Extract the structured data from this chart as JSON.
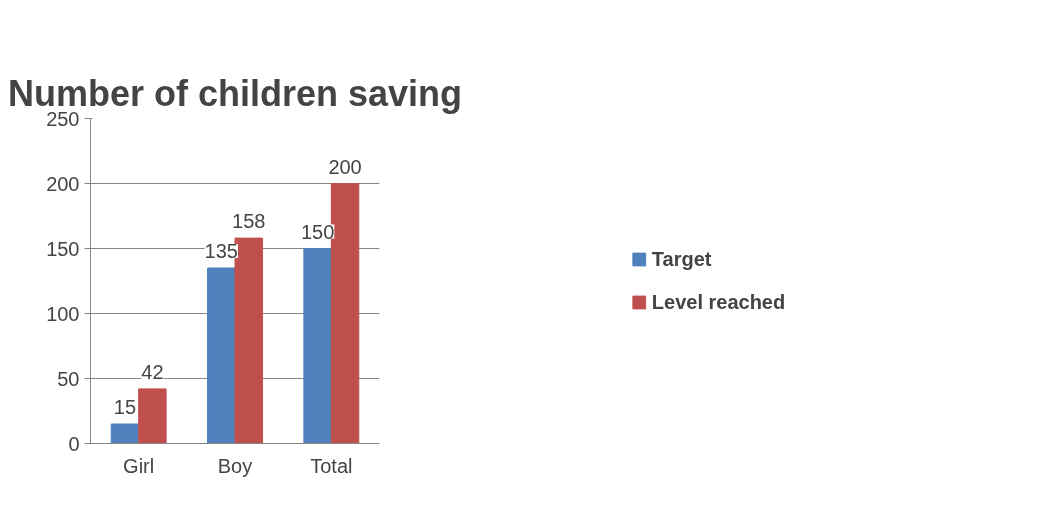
{
  "chart_data": {
    "type": "bar",
    "title": "Number of children saving",
    "categories": [
      "Girl",
      "Boy",
      "Total"
    ],
    "series": [
      {
        "name": "Target",
        "color": "#4f81bd",
        "values": [
          15,
          135,
          150
        ]
      },
      {
        "name": "Level reached",
        "color": "#c0504d",
        "values": [
          42,
          158,
          200
        ]
      }
    ],
    "ylim": [
      0,
      250
    ],
    "yticks": [
      0,
      50,
      100,
      150,
      200,
      250
    ],
    "grid": "y",
    "legend": "right",
    "data_labels": true
  }
}
